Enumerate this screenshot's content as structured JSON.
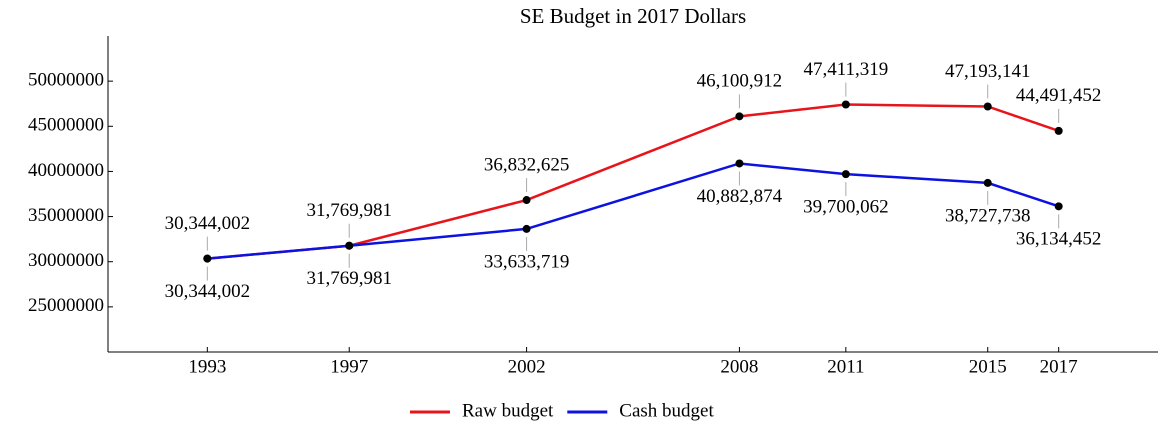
{
  "chart_data": {
    "type": "line",
    "title": "SE Budget in 2017 Dollars",
    "x": [
      1993,
      1997,
      2002,
      2008,
      2011,
      2015,
      2017
    ],
    "series": [
      {
        "name": "Raw budget",
        "color": "#e8141b",
        "values": [
          30344002,
          31769981,
          36832625,
          46100912,
          47411319,
          47193141,
          44491452
        ],
        "value_labels": [
          "30,344,002",
          "31,769,981",
          "36,832,625",
          "46,100,912",
          "47,411,319",
          "47,193,141",
          "44,491,452"
        ]
      },
      {
        "name": "Cash budget",
        "color": "#0c13e0",
        "values": [
          30344002,
          31769981,
          33633719,
          40882874,
          39700062,
          38727738,
          36134452
        ],
        "value_labels": [
          "30,344,002",
          "31,769,981",
          "33,633,719",
          "40,882,874",
          "39,700,062",
          "38,727,738",
          "36,134,452"
        ]
      }
    ],
    "xlim": [
      1990.2,
      2019.8
    ],
    "xticks": [
      1993,
      1997,
      2002,
      2008,
      2011,
      2015,
      2017
    ],
    "ylim": [
      20000000,
      55000000
    ],
    "yticks": [
      25000000,
      30000000,
      35000000,
      40000000,
      45000000,
      50000000
    ],
    "legend": "bottom"
  }
}
